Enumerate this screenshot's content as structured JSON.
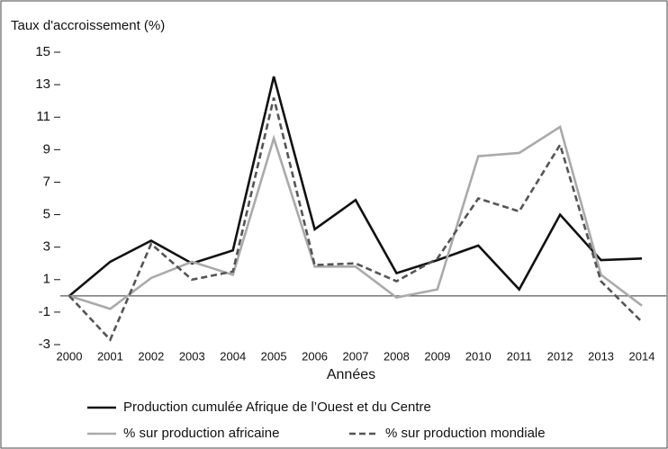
{
  "chart_data": {
    "type": "line",
    "y_label": "Taux d'accroissement (%)",
    "x_label": "Années",
    "categories": [
      "2000",
      "2001",
      "2002",
      "2003",
      "2004",
      "2005",
      "2006",
      "2007",
      "2008",
      "2009",
      "2010",
      "2011",
      "2012",
      "2013",
      "2014"
    ],
    "series": [
      {
        "name": "Production cumulée Afrique de l’Ouest et du Centre",
        "color": "#111111",
        "line_style": "solid",
        "values": [
          0,
          2.1,
          3.4,
          2.0,
          2.8,
          13.5,
          4.1,
          5.9,
          1.4,
          2.2,
          3.1,
          0.4,
          5.0,
          2.2,
          2.3
        ]
      },
      {
        "name": "% sur production africaine",
        "color": "#aaaaaa",
        "line_style": "solid",
        "values": [
          0,
          -0.8,
          1.1,
          2.1,
          1.3,
          9.7,
          1.8,
          1.8,
          -0.1,
          0.4,
          8.6,
          8.8,
          10.4,
          1.3,
          -0.6
        ]
      },
      {
        "name": "% sur production mondiale",
        "color": "#555555",
        "line_style": "dashed",
        "values": [
          0,
          -2.7,
          3.2,
          1.0,
          1.5,
          12.2,
          1.9,
          2.0,
          0.9,
          2.3,
          6.0,
          5.2,
          9.3,
          0.9,
          -1.6
        ]
      }
    ],
    "ylim": [
      -3,
      15
    ],
    "yticks": [
      -3,
      -1,
      1,
      3,
      5,
      7,
      9,
      11,
      13,
      15
    ],
    "grid": false
  }
}
